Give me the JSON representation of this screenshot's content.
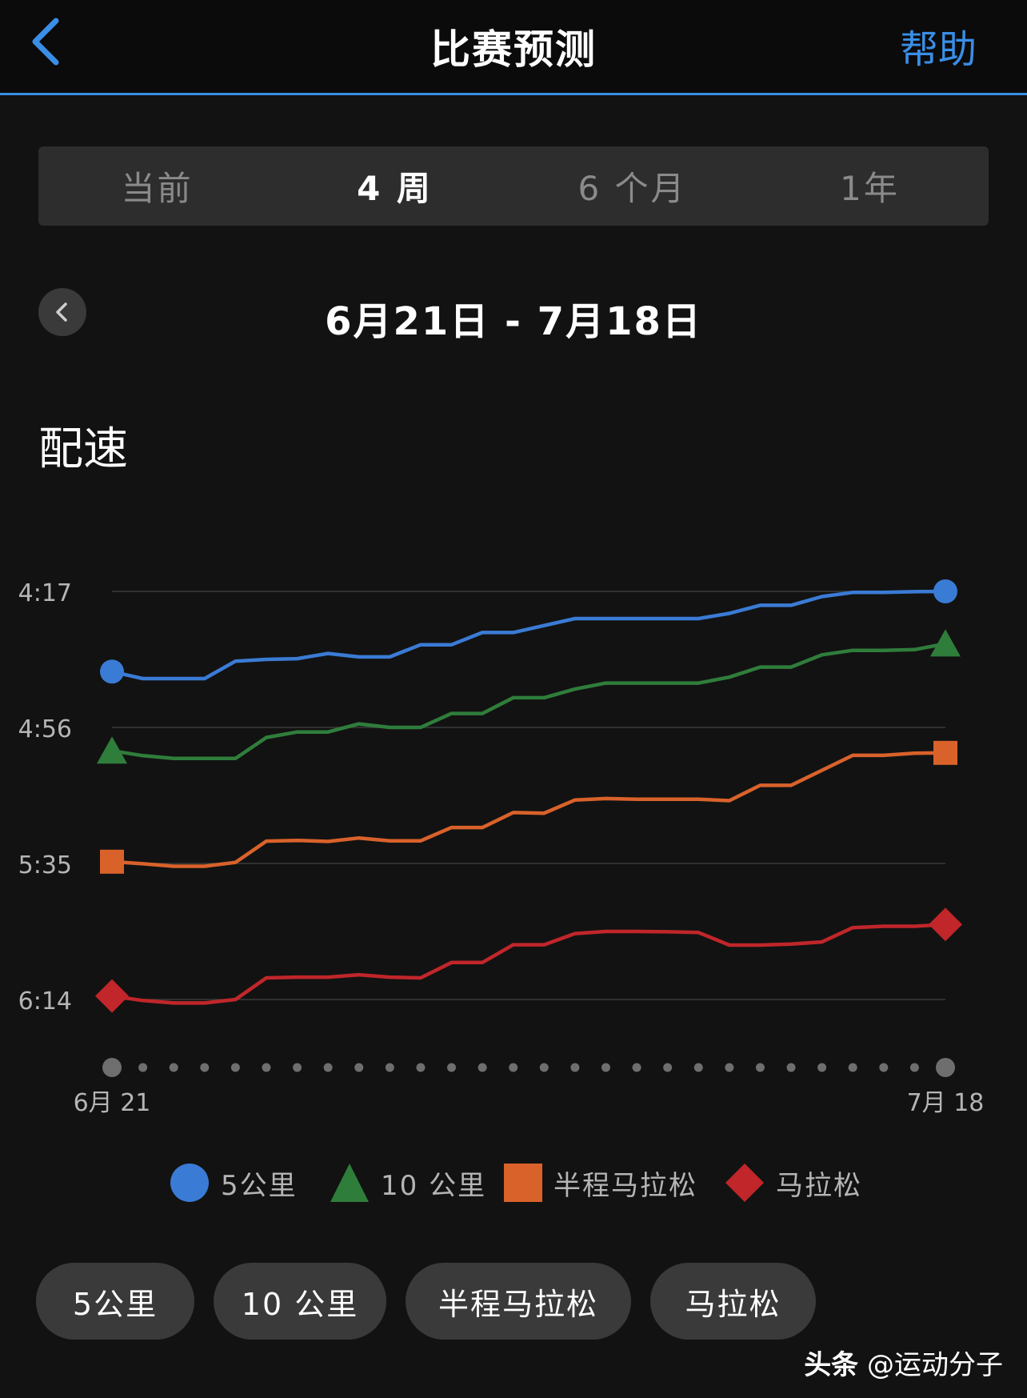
{
  "header": {
    "title": "比赛预测",
    "help_label": "帮助"
  },
  "tabs": [
    {
      "label": "当前",
      "active": false
    },
    {
      "label": "4 周",
      "active": true
    },
    {
      "label": "6 个月",
      "active": false
    },
    {
      "label": "1年",
      "active": false
    }
  ],
  "date_range": "6月21日 - 7月18日",
  "section_title": "配速",
  "colors": {
    "accent": "#3a8ee6",
    "5k": "#3a7bd5",
    "10k": "#2f7d3b",
    "half": "#d9622b",
    "marathon": "#c0262a"
  },
  "chart_data": {
    "type": "line",
    "y_tick_labels": [
      "4:17",
      "4:56",
      "5:35",
      "6:14"
    ],
    "y_ticks_seconds": [
      257,
      296,
      335,
      374
    ],
    "y_inverted": true,
    "x_start_label": "6月 21",
    "x_end_label": "7月 18",
    "x_points": 28,
    "grid": true,
    "legend_position": "bottom",
    "series": [
      {
        "name": "5公里",
        "marker": "circle",
        "values": [
          280,
          282,
          282,
          282,
          277,
          276.5,
          276.3,
          274.8,
          275.8,
          275.8,
          272.3,
          272.3,
          268.8,
          268.8,
          266.8,
          264.8,
          264.8,
          264.8,
          264.8,
          264.8,
          263.3,
          261,
          261,
          258.5,
          257.3,
          257.3,
          257.1,
          257
        ]
      },
      {
        "name": "10 公里",
        "marker": "triangle",
        "values": [
          302.7,
          304.1,
          304.9,
          304.9,
          304.9,
          298.9,
          297.3,
          297.3,
          295,
          296,
          296,
          292,
          292,
          287.5,
          287.5,
          285,
          283.3,
          283.3,
          283.3,
          283.3,
          281.6,
          278.7,
          278.7,
          275.2,
          273.9,
          273.9,
          273.7,
          272
        ]
      },
      {
        "name": "半程马拉松",
        "marker": "square",
        "values": [
          334.5,
          335.1,
          335.8,
          335.8,
          334.7,
          328.6,
          328.4,
          328.7,
          327.7,
          328.5,
          328.5,
          324.7,
          324.7,
          320.4,
          320.6,
          316.8,
          316.4,
          316.6,
          316.6,
          316.6,
          317,
          312.6,
          312.6,
          308.3,
          304,
          304,
          303.4,
          303.3
        ]
      },
      {
        "name": "马拉松",
        "marker": "diamond",
        "values": [
          373,
          374.3,
          375,
          375,
          374,
          367.8,
          367.6,
          367.6,
          366.9,
          367.6,
          367.8,
          363.4,
          363.4,
          358.3,
          358.3,
          355.1,
          354.5,
          354.5,
          354.6,
          354.8,
          358.4,
          358.4,
          358.1,
          357.5,
          353.4,
          353,
          353,
          352.5
        ]
      }
    ]
  },
  "filters": [
    "5公里",
    "10 公里",
    "半程马拉松",
    "马拉松"
  ],
  "watermark": {
    "brand": "头条",
    "handle": "@运动分子"
  }
}
